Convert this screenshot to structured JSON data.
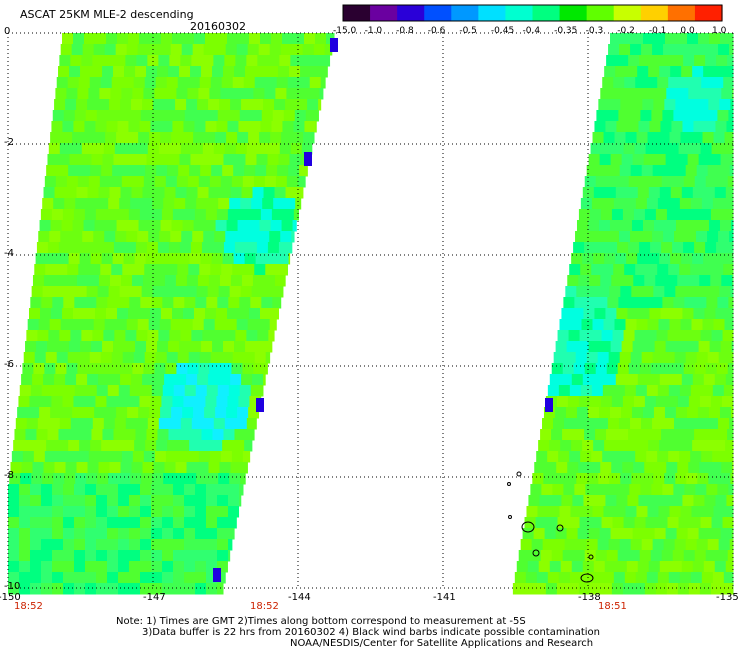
{
  "header": {
    "title": "ASCAT 25KM MLE-2 descending",
    "date": "20160302"
  },
  "colorbar": {
    "labels": [
      "-15.0",
      "-1.0",
      "-0.8",
      "-0.6",
      "-0.5",
      "-0.45",
      "-0.4",
      "-0.35",
      "-0.3",
      "-0.2",
      "-0.1",
      "0.0",
      "1.0"
    ],
    "colors": [
      "#2a0030",
      "#6a00a0",
      "#2a00d8",
      "#0050ff",
      "#0098ff",
      "#00e0ff",
      "#00ffd0",
      "#00ff80",
      "#00e800",
      "#60ff00",
      "#c8ff00",
      "#ffd000",
      "#ff7000",
      "#ff2000"
    ]
  },
  "map": {
    "y_axis_labels": [
      "0",
      "-2",
      "-4",
      "-6",
      "-8",
      "-10"
    ],
    "x_axis_labels": [
      "-150",
      "-147",
      "-144",
      "-141",
      "-138",
      "-135"
    ],
    "time_labels": [
      "18:52",
      "18:52",
      "18:51"
    ],
    "swath_palette": [
      "#8cff00",
      "#7cff00",
      "#6cff10",
      "#50ff30",
      "#40ff50",
      "#30ff70",
      "#00ff80",
      "#20ffb0",
      "#00ffe0",
      "#10f0ff",
      "#00c8ff",
      "#0040ff",
      "#2000e0"
    ]
  },
  "notes": [
    "Note: 1) Times are GMT 2)Times along bottom correspond to measurement at -5S",
    "3)Data buffer is 22 hrs from 20160302 4) Black wind barbs indicate possible contamination",
    "NOAA/NESDIS/Center for Satellite Applications and Research"
  ]
}
